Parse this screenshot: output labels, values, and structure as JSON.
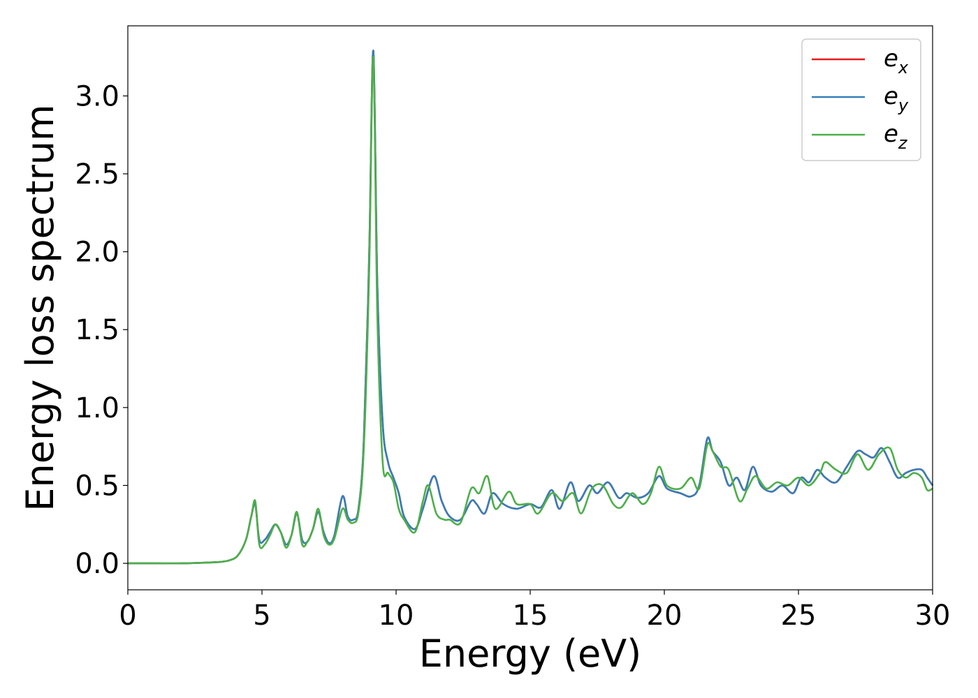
{
  "chart_data": {
    "type": "line",
    "title": "",
    "xlabel": "Energy (eV)",
    "ylabel": "Energy loss spectrum",
    "xlim": [
      0,
      30
    ],
    "ylim": [
      -0.17,
      3.45
    ],
    "xticks": [
      0,
      5,
      10,
      15,
      20,
      25,
      30
    ],
    "xtick_labels": [
      "0",
      "5",
      "10",
      "15",
      "20",
      "25",
      "30"
    ],
    "yticks": [
      0.0,
      0.5,
      1.0,
      1.5,
      2.0,
      2.5,
      3.0
    ],
    "ytick_labels": [
      "0.0",
      "0.5",
      "1.0",
      "1.5",
      "2.0",
      "2.5",
      "3.0"
    ],
    "grid": false,
    "legend": {
      "placement": "top-right",
      "entries": [
        {
          "base": "e",
          "sub": "x",
          "color": "#e41a1c"
        },
        {
          "base": "e",
          "sub": "y",
          "color": "#377eb8"
        },
        {
          "base": "e",
          "sub": "z",
          "color": "#4daf4a"
        }
      ]
    },
    "series": [
      {
        "color": "#e41a1c",
        "x": [
          0,
          1,
          2,
          3,
          3.5,
          3.8,
          4.1,
          4.4,
          4.6,
          4.75,
          4.9,
          5.1,
          5.3,
          5.5,
          5.7,
          5.9,
          6.1,
          6.3,
          6.5,
          6.7,
          6.9,
          7.1,
          7.3,
          7.5,
          7.7,
          8.0,
          8.2,
          8.4,
          8.6,
          8.8,
          9.0,
          9.15,
          9.3,
          9.5,
          9.7,
          9.9,
          10.1,
          10.3,
          10.7,
          11.0,
          11.4,
          11.7,
          12.0,
          12.4,
          12.8,
          13.0,
          13.3,
          13.6,
          14.0,
          14.5,
          15.0,
          15.4,
          15.8,
          16.1,
          16.5,
          16.8,
          17.2,
          17.5,
          17.9,
          18.3,
          18.6,
          19.0,
          19.4,
          19.8,
          20.1,
          20.6,
          21.0,
          21.3,
          21.6,
          21.8,
          22.1,
          22.4,
          22.7,
          23.0,
          23.3,
          23.6,
          24.0,
          24.4,
          24.8,
          25.1,
          25.4,
          25.7,
          26.0,
          26.4,
          26.8,
          27.2,
          27.5,
          27.8,
          28.1,
          28.4,
          28.7,
          29.0,
          29.3,
          29.6,
          29.8,
          30.0
        ],
        "y": [
          0.0,
          0.0,
          0.0,
          0.005,
          0.01,
          0.02,
          0.05,
          0.15,
          0.3,
          0.38,
          0.15,
          0.15,
          0.2,
          0.25,
          0.2,
          0.12,
          0.18,
          0.32,
          0.15,
          0.14,
          0.22,
          0.33,
          0.2,
          0.13,
          0.18,
          0.43,
          0.3,
          0.28,
          0.35,
          0.8,
          2.0,
          3.29,
          1.8,
          0.9,
          0.65,
          0.55,
          0.45,
          0.3,
          0.22,
          0.35,
          0.56,
          0.4,
          0.3,
          0.28,
          0.4,
          0.38,
          0.32,
          0.45,
          0.38,
          0.35,
          0.38,
          0.36,
          0.47,
          0.35,
          0.52,
          0.4,
          0.5,
          0.45,
          0.52,
          0.42,
          0.45,
          0.42,
          0.45,
          0.56,
          0.48,
          0.45,
          0.43,
          0.5,
          0.8,
          0.72,
          0.65,
          0.5,
          0.55,
          0.47,
          0.62,
          0.5,
          0.46,
          0.5,
          0.45,
          0.55,
          0.52,
          0.6,
          0.55,
          0.52,
          0.62,
          0.72,
          0.7,
          0.68,
          0.74,
          0.65,
          0.55,
          0.58,
          0.6,
          0.6,
          0.55,
          0.5
        ]
      },
      {
        "color": "#377eb8",
        "x": [
          0,
          1,
          2,
          3,
          3.5,
          3.8,
          4.1,
          4.4,
          4.6,
          4.75,
          4.9,
          5.1,
          5.3,
          5.5,
          5.7,
          5.9,
          6.1,
          6.3,
          6.5,
          6.7,
          6.9,
          7.1,
          7.3,
          7.5,
          7.7,
          8.0,
          8.2,
          8.4,
          8.6,
          8.8,
          9.0,
          9.15,
          9.3,
          9.5,
          9.7,
          9.9,
          10.1,
          10.3,
          10.7,
          11.0,
          11.4,
          11.7,
          12.0,
          12.4,
          12.8,
          13.0,
          13.3,
          13.6,
          14.0,
          14.5,
          15.0,
          15.4,
          15.8,
          16.1,
          16.5,
          16.8,
          17.2,
          17.5,
          17.9,
          18.3,
          18.6,
          19.0,
          19.4,
          19.8,
          20.1,
          20.6,
          21.0,
          21.3,
          21.6,
          21.8,
          22.1,
          22.4,
          22.7,
          23.0,
          23.3,
          23.6,
          24.0,
          24.4,
          24.8,
          25.1,
          25.4,
          25.7,
          26.0,
          26.4,
          26.8,
          27.2,
          27.5,
          27.8,
          28.1,
          28.4,
          28.7,
          29.0,
          29.3,
          29.6,
          29.8,
          30.0
        ],
        "y": [
          0.0,
          0.0,
          0.0,
          0.005,
          0.01,
          0.02,
          0.05,
          0.15,
          0.3,
          0.38,
          0.15,
          0.15,
          0.2,
          0.25,
          0.2,
          0.12,
          0.18,
          0.32,
          0.15,
          0.14,
          0.22,
          0.33,
          0.2,
          0.13,
          0.18,
          0.43,
          0.3,
          0.28,
          0.35,
          0.8,
          2.0,
          3.29,
          1.8,
          0.9,
          0.65,
          0.55,
          0.45,
          0.3,
          0.22,
          0.35,
          0.56,
          0.4,
          0.3,
          0.28,
          0.4,
          0.38,
          0.32,
          0.45,
          0.38,
          0.35,
          0.38,
          0.36,
          0.47,
          0.35,
          0.52,
          0.4,
          0.5,
          0.45,
          0.52,
          0.42,
          0.45,
          0.42,
          0.45,
          0.56,
          0.48,
          0.45,
          0.43,
          0.5,
          0.8,
          0.72,
          0.65,
          0.5,
          0.55,
          0.47,
          0.62,
          0.5,
          0.46,
          0.5,
          0.45,
          0.55,
          0.52,
          0.6,
          0.55,
          0.52,
          0.62,
          0.72,
          0.7,
          0.68,
          0.74,
          0.65,
          0.55,
          0.58,
          0.6,
          0.6,
          0.55,
          0.5
        ]
      },
      {
        "color": "#4daf4a",
        "x": [
          0,
          1,
          2,
          3,
          3.5,
          3.8,
          4.1,
          4.4,
          4.6,
          4.75,
          4.9,
          5.1,
          5.3,
          5.5,
          5.7,
          5.9,
          6.1,
          6.3,
          6.5,
          6.7,
          6.9,
          7.1,
          7.3,
          7.5,
          7.7,
          8.0,
          8.2,
          8.4,
          8.6,
          8.8,
          9.0,
          9.15,
          9.3,
          9.5,
          9.7,
          9.9,
          10.1,
          10.3,
          10.7,
          11.0,
          11.2,
          11.5,
          11.8,
          12.0,
          12.4,
          12.8,
          13.1,
          13.4,
          13.7,
          14.2,
          14.5,
          15.0,
          15.3,
          15.8,
          16.2,
          16.6,
          16.9,
          17.3,
          17.7,
          18.1,
          18.4,
          18.8,
          19.2,
          19.5,
          19.8,
          20.1,
          20.6,
          21.0,
          21.3,
          21.6,
          21.8,
          22.1,
          22.4,
          22.8,
          23.1,
          23.4,
          23.8,
          24.2,
          24.6,
          25.0,
          25.4,
          25.8,
          26.0,
          26.4,
          26.8,
          27.2,
          27.6,
          28.0,
          28.4,
          28.7,
          29.0,
          29.3,
          29.6,
          29.8,
          30.0
        ],
        "y": [
          0.0,
          0.0,
          0.0,
          0.005,
          0.01,
          0.02,
          0.05,
          0.15,
          0.3,
          0.4,
          0.12,
          0.12,
          0.18,
          0.25,
          0.2,
          0.1,
          0.18,
          0.33,
          0.12,
          0.14,
          0.22,
          0.35,
          0.18,
          0.12,
          0.16,
          0.35,
          0.28,
          0.26,
          0.33,
          0.75,
          1.9,
          3.25,
          1.6,
          0.65,
          0.58,
          0.52,
          0.35,
          0.28,
          0.2,
          0.4,
          0.5,
          0.32,
          0.28,
          0.28,
          0.26,
          0.48,
          0.45,
          0.56,
          0.35,
          0.46,
          0.38,
          0.38,
          0.32,
          0.45,
          0.4,
          0.45,
          0.32,
          0.48,
          0.5,
          0.38,
          0.36,
          0.45,
          0.38,
          0.45,
          0.62,
          0.5,
          0.48,
          0.55,
          0.48,
          0.76,
          0.72,
          0.62,
          0.6,
          0.4,
          0.48,
          0.56,
          0.48,
          0.52,
          0.5,
          0.55,
          0.5,
          0.58,
          0.65,
          0.6,
          0.58,
          0.7,
          0.6,
          0.7,
          0.74,
          0.6,
          0.55,
          0.58,
          0.55,
          0.47,
          0.48
        ]
      }
    ]
  }
}
